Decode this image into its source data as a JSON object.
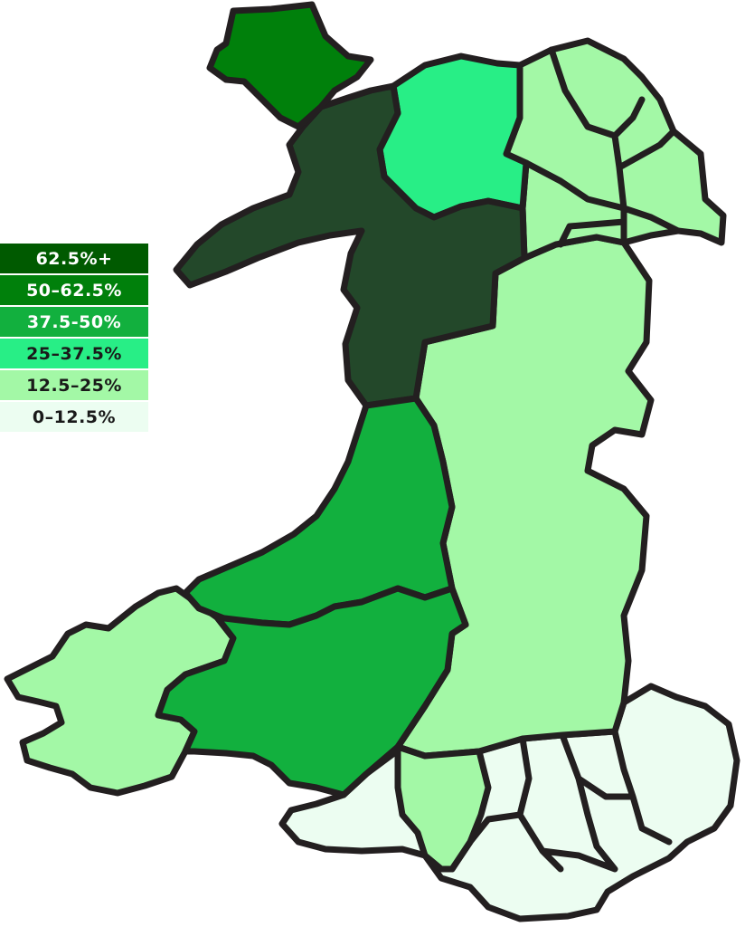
{
  "legend": [
    {
      "label": "62.5%+",
      "color": "#005a00",
      "text_color": "#ffffff"
    },
    {
      "label": "50–62.5%",
      "color": "#00800b",
      "text_color": "#ffffff"
    },
    {
      "label": "37.5-50%",
      "color": "#12b03e",
      "text_color": "#ffffff"
    },
    {
      "label": "25–37.5%",
      "color": "#28ee86",
      "text_color": "#1a1a1a"
    },
    {
      "label": "12.5–25%",
      "color": "#a3f8a6",
      "text_color": "#1a1a1a"
    },
    {
      "label": "0–12.5%",
      "color": "#ecfdf1",
      "text_color": "#1a1a1a"
    }
  ],
  "colors": {
    "border": "#231f20",
    "anglesey": "#00800b",
    "gwynedd": "#23482a",
    "conwy": "#28ee86",
    "ceredigion": "#12b03e",
    "carmarthenshire": "#12b03e",
    "north_east": "#a3f8a6",
    "powys": "#a3f8a6",
    "pembrokeshire": "#a3f8a6",
    "neath_port_talbot": "#a3f8a6",
    "south_east": "#ecfdf1"
  }
}
